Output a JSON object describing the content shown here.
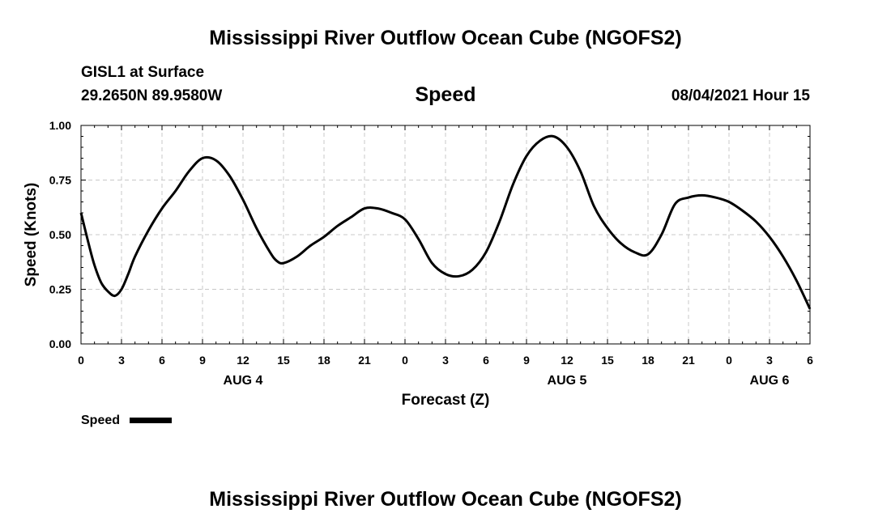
{
  "header": {
    "title": "Mississippi River Outflow Ocean Cube (NGOFS2)",
    "station": "GISL1 at Surface",
    "coords": "29.2650N  89.9580W",
    "variable": "Speed",
    "datetime": "08/04/2021 Hour 15"
  },
  "footer": {
    "title": "Mississippi River Outflow Ocean Cube (NGOFS2)"
  },
  "legend": {
    "label": "Speed"
  },
  "colors": {
    "line": "#000000",
    "grid": "#c8c8c8"
  },
  "chart_data": {
    "type": "line",
    "xlabel": "Forecast (Z)",
    "ylabel": "Speed (Knots)",
    "xlim": [
      0,
      54
    ],
    "ylim": [
      0,
      1
    ],
    "grid": true,
    "legend_position": "bottom-left",
    "x_ticks": [
      0,
      3,
      6,
      9,
      12,
      15,
      18,
      21,
      24,
      27,
      30,
      33,
      36,
      39,
      42,
      45,
      48,
      51,
      54
    ],
    "x_tick_labels": [
      "0",
      "3",
      "6",
      "9",
      "12",
      "15",
      "18",
      "21",
      "0",
      "3",
      "6",
      "9",
      "12",
      "15",
      "18",
      "21",
      "0",
      "3",
      "6"
    ],
    "y_ticks": [
      0,
      0.25,
      0.5,
      0.75,
      1.0
    ],
    "y_tick_labels": [
      "0.00",
      "0.25",
      "0.50",
      "0.75",
      "1.00"
    ],
    "date_labels": [
      {
        "x": 12,
        "label": "AUG 4"
      },
      {
        "x": 36,
        "label": "AUG 5"
      },
      {
        "x": 51,
        "label": "AUG 6"
      }
    ],
    "series": [
      {
        "name": "Speed",
        "x": [
          0,
          0.6,
          1,
          1.5,
          2,
          2.5,
          3,
          3.5,
          4,
          5,
          6,
          7,
          8,
          9,
          10,
          11,
          12,
          13,
          14,
          14.5,
          15,
          16,
          17,
          18,
          19,
          20,
          21,
          22,
          23,
          24,
          25,
          26,
          27,
          28,
          29,
          30,
          31,
          32,
          33,
          34,
          35,
          36,
          37,
          38,
          39,
          40,
          41,
          42,
          43,
          44,
          45,
          46,
          47,
          48,
          49,
          50,
          51,
          52,
          53,
          54
        ],
        "y": [
          0.6,
          0.45,
          0.36,
          0.28,
          0.24,
          0.22,
          0.25,
          0.32,
          0.4,
          0.52,
          0.62,
          0.7,
          0.79,
          0.85,
          0.84,
          0.77,
          0.66,
          0.53,
          0.42,
          0.38,
          0.37,
          0.4,
          0.45,
          0.49,
          0.54,
          0.58,
          0.62,
          0.62,
          0.6,
          0.57,
          0.48,
          0.37,
          0.32,
          0.31,
          0.34,
          0.42,
          0.56,
          0.73,
          0.86,
          0.93,
          0.95,
          0.9,
          0.79,
          0.63,
          0.53,
          0.46,
          0.42,
          0.41,
          0.5,
          0.64,
          0.67,
          0.68,
          0.67,
          0.65,
          0.61,
          0.56,
          0.49,
          0.4,
          0.29,
          0.16
        ]
      }
    ]
  }
}
